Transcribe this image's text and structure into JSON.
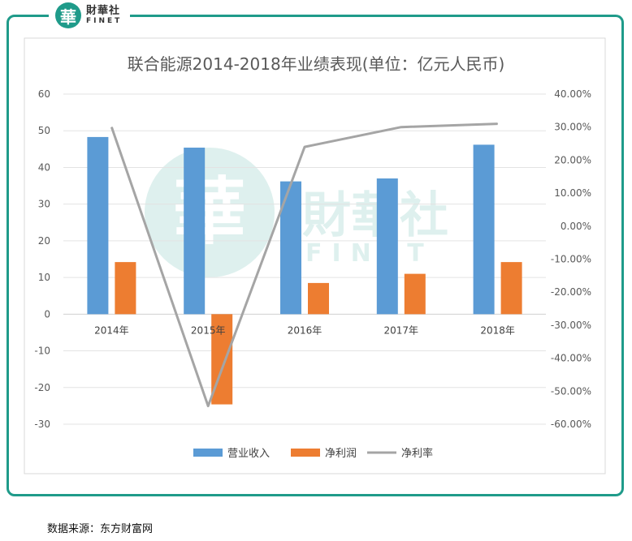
{
  "logo": {
    "mark": "華",
    "name_cn": "財華社",
    "name_en": "FINET"
  },
  "watermark": {
    "mark": "華",
    "name_cn": "財華社",
    "name_en": "FINET"
  },
  "source_note": "数据来源：东方财富网",
  "colors": {
    "frame": "#1f9b8a",
    "revenue": "#5b9bd5",
    "net_profit": "#ed7d31",
    "net_margin": "#a5a5a5"
  },
  "chart_data": {
    "type": "bar",
    "title": "联合能源2014-2018年业绩表现(单位：亿元人民币)",
    "categories": [
      "2014年",
      "2015年",
      "2016年",
      "2017年",
      "2018年"
    ],
    "series": [
      {
        "name": "营业收入",
        "type": "bar",
        "axis": "left",
        "values": [
          48.3,
          45.4,
          36.2,
          37.0,
          46.2
        ]
      },
      {
        "name": "净利润",
        "type": "bar",
        "axis": "left",
        "values": [
          14.2,
          -24.6,
          8.5,
          11.0,
          14.2
        ]
      },
      {
        "name": "净利率",
        "type": "line",
        "axis": "right",
        "values": [
          30.0,
          -54.5,
          24.0,
          30.0,
          31.0
        ]
      }
    ],
    "y_left": {
      "ticks": [
        "60",
        "50",
        "40",
        "30",
        "20",
        "10",
        "0",
        "-10",
        "-20",
        "-30"
      ],
      "min": -30,
      "max": 60
    },
    "y_right": {
      "ticks": [
        "40.00%",
        "30.00%",
        "20.00%",
        "10.00%",
        "0.00%",
        "-10.00%",
        "-20.00%",
        "-30.00%",
        "-40.00%",
        "-50.00%",
        "-60.00%"
      ],
      "min": -60,
      "max": 40
    },
    "grid": true,
    "legend_position": "bottom"
  }
}
